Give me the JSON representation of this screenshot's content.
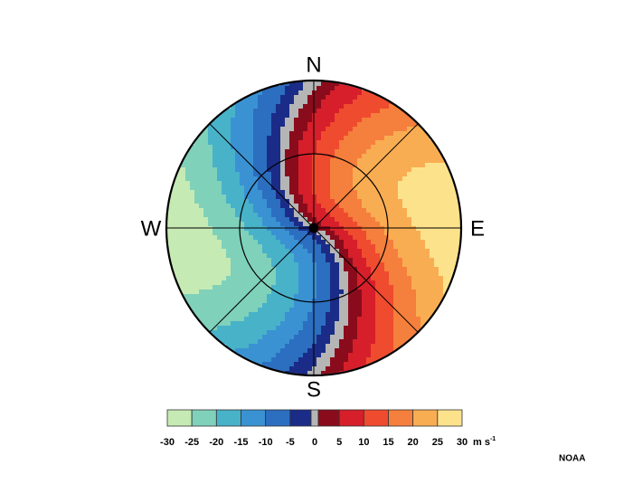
{
  "compass": {
    "north": "N",
    "east": "E",
    "south": "S",
    "west": "W"
  },
  "colorbar": {
    "colors": [
      "#c6eab3",
      "#7fd1ba",
      "#48b2c9",
      "#3a92d2",
      "#2c6ec0",
      "#1b2c88",
      "#b5b5b5",
      "#8a0c1c",
      "#d61f2a",
      "#ef4b2f",
      "#f57f3c",
      "#f9ad52",
      "#fde28c"
    ],
    "ticks": [
      -30,
      -25,
      -20,
      -15,
      -10,
      -5,
      0,
      5,
      10,
      15,
      20,
      25,
      30
    ],
    "unit": {
      "base": "m s",
      "exponent": "-1"
    }
  },
  "credit": "NOAA"
}
